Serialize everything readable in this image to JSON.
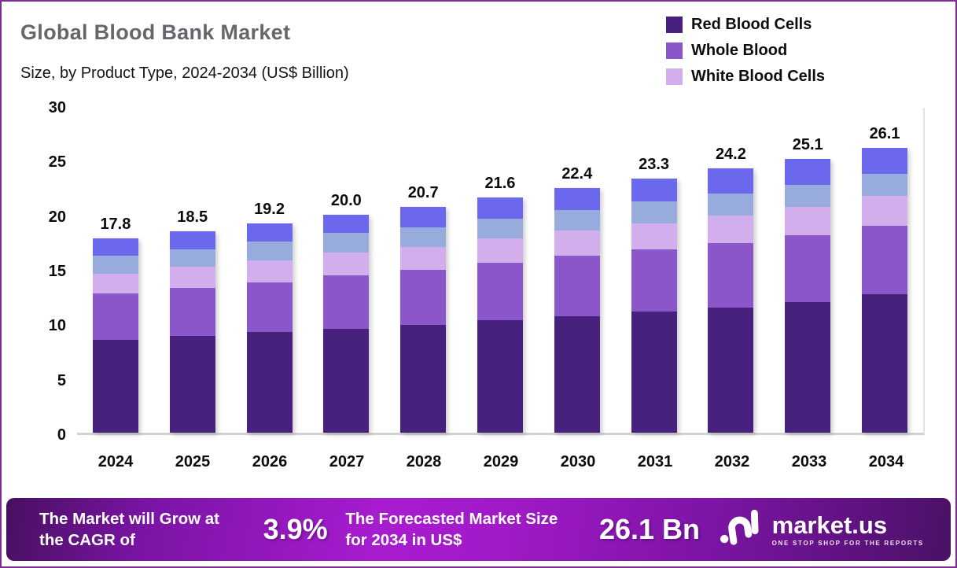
{
  "header": {
    "title": "Global Blood Bank Market",
    "subtitle": "Size, by Product Type, 2024-2034 (US$ Billion)"
  },
  "chart_data": {
    "type": "bar",
    "stacked": true,
    "title": "Global Blood Bank Market Size, by Product Type, 2024-2034 (US$ Billion)",
    "categories": [
      "2024",
      "2025",
      "2026",
      "2027",
      "2028",
      "2029",
      "2030",
      "2031",
      "2032",
      "2033",
      "2034"
    ],
    "totals": [
      "17.8",
      "18.5",
      "19.2",
      "20.0",
      "20.7",
      "21.6",
      "22.4",
      "23.3",
      "24.2",
      "25.1",
      "26.1"
    ],
    "series": [
      {
        "name": "Red Blood Cells",
        "color": "#46217e",
        "values": [
          8.5,
          8.9,
          9.2,
          9.5,
          9.9,
          10.3,
          10.7,
          11.1,
          11.5,
          12.0,
          12.7
        ]
      },
      {
        "name": "Whole Blood",
        "color": "#8a56c9",
        "values": [
          4.3,
          4.4,
          4.6,
          4.9,
          5.0,
          5.3,
          5.5,
          5.7,
          5.9,
          6.1,
          6.3
        ]
      },
      {
        "name": "White Blood Cells",
        "color": "#d2aeec",
        "values": [
          1.8,
          1.9,
          2.0,
          2.1,
          2.1,
          2.2,
          2.3,
          2.4,
          2.5,
          2.6,
          2.7
        ]
      },
      {
        "name": "",
        "color": "#97abdd",
        "values": [
          1.6,
          1.6,
          1.7,
          1.8,
          1.8,
          1.8,
          1.9,
          2.0,
          2.0,
          2.0,
          2.0
        ]
      },
      {
        "name": "",
        "color": "#6b68ee",
        "values": [
          1.6,
          1.7,
          1.7,
          1.7,
          1.9,
          2.0,
          2.0,
          2.1,
          2.3,
          2.4,
          2.4
        ]
      }
    ],
    "legend": [
      {
        "label": "Red Blood Cells",
        "color": "#46217e"
      },
      {
        "label": "Whole Blood",
        "color": "#8a56c9"
      },
      {
        "label": "White Blood Cells",
        "color": "#d2aeec"
      }
    ],
    "legend_position": "top-right",
    "y_ticks": [
      30,
      25,
      20,
      15,
      10,
      5,
      0
    ],
    "ylim": [
      0,
      30
    ],
    "xlabel": "",
    "ylabel": "US$ Billion",
    "grid": false
  },
  "banner": {
    "cagr_text": "The Market will Grow at the CAGR of",
    "cagr_value": "3.9%",
    "forecast_text": "The Forecasted Market Size for 2034 in US$",
    "forecast_value": "26.1 Bn",
    "logo_name": "market.us",
    "logo_tagline": "ONE STOP SHOP FOR THE REPORTS"
  },
  "colors": {
    "frame_border": "#7e2d92",
    "title_gray": "#66676b",
    "banner_center": "#a81cd0",
    "banner_edge": "#47105f",
    "axis_line": "#d2d2d2"
  }
}
